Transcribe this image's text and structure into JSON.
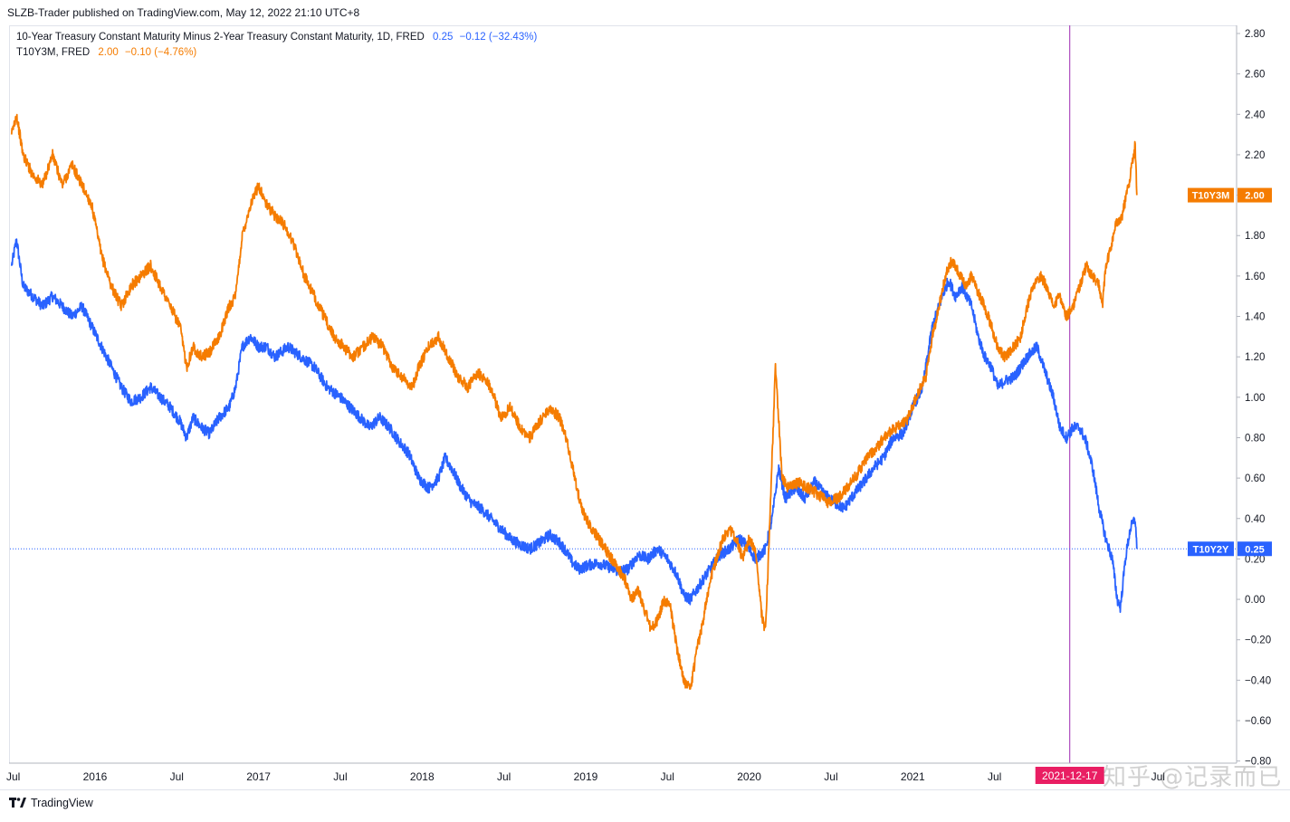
{
  "header": {
    "publisher": "SLZB-Trader published on TradingView.com, May 12, 2022 21:10 UTC+8"
  },
  "legend": [
    {
      "name": "10-Year Treasury Constant Maturity Minus 2-Year Treasury Constant Maturity, 1D, FRED",
      "value": "0.25",
      "change": "−0.12 (−32.43%)",
      "color": "#2962ff"
    },
    {
      "name": "T10Y3M, FRED",
      "value": "2.00",
      "change": "−0.10 (−4.76%)",
      "color": "#f57c00"
    }
  ],
  "footer": {
    "brand": "TradingView",
    "watermark": "知乎 @记录而已"
  },
  "chart_data": {
    "type": "line",
    "y_axis_side": "right",
    "ylim": [
      -0.8,
      2.8
    ],
    "y_ticks": [
      "2.80",
      "2.60",
      "2.40",
      "2.20",
      "2.00",
      "1.80",
      "1.60",
      "1.40",
      "1.20",
      "1.00",
      "0.80",
      "0.60",
      "0.40",
      "0.20",
      "0.00",
      "−0.20",
      "−0.40",
      "−0.60",
      "−0.80"
    ],
    "x_ticks": [
      {
        "label": "Jul",
        "t": 2015.5
      },
      {
        "label": "2016",
        "t": 2016.0
      },
      {
        "label": "Jul",
        "t": 2016.5
      },
      {
        "label": "2017",
        "t": 2017.0
      },
      {
        "label": "Jul",
        "t": 2017.5
      },
      {
        "label": "2018",
        "t": 2018.0
      },
      {
        "label": "Jul",
        "t": 2018.5
      },
      {
        "label": "2019",
        "t": 2019.0
      },
      {
        "label": "Jul",
        "t": 2019.5
      },
      {
        "label": "2020",
        "t": 2020.0
      },
      {
        "label": "Jul",
        "t": 2020.5
      },
      {
        "label": "2021",
        "t": 2021.0
      },
      {
        "label": "Jul",
        "t": 2021.5
      },
      {
        "label": "Jul",
        "t": 2022.5
      }
    ],
    "xlim": [
      2015.48,
      2022.98
    ],
    "marker": {
      "label": "2021-12-17",
      "t": 2021.96,
      "color": "#e91e63"
    },
    "price_line": {
      "value": 0.25,
      "color": "#2962ff"
    },
    "series": [
      {
        "name": "T10Y2Y",
        "color": "#2962ff",
        "last_value": "0.25",
        "points": [
          [
            2015.49,
            1.65
          ],
          [
            2015.52,
            1.78
          ],
          [
            2015.56,
            1.55
          ],
          [
            2015.62,
            1.5
          ],
          [
            2015.68,
            1.45
          ],
          [
            2015.74,
            1.5
          ],
          [
            2015.8,
            1.45
          ],
          [
            2015.86,
            1.4
          ],
          [
            2015.92,
            1.45
          ],
          [
            2015.98,
            1.35
          ],
          [
            2016.04,
            1.25
          ],
          [
            2016.1,
            1.15
          ],
          [
            2016.16,
            1.05
          ],
          [
            2016.22,
            0.98
          ],
          [
            2016.28,
            1.0
          ],
          [
            2016.34,
            1.05
          ],
          [
            2016.4,
            1.0
          ],
          [
            2016.46,
            0.95
          ],
          [
            2016.52,
            0.88
          ],
          [
            2016.56,
            0.8
          ],
          [
            2016.6,
            0.9
          ],
          [
            2016.65,
            0.85
          ],
          [
            2016.7,
            0.82
          ],
          [
            2016.76,
            0.9
          ],
          [
            2016.82,
            0.95
          ],
          [
            2016.86,
            1.05
          ],
          [
            2016.9,
            1.25
          ],
          [
            2016.95,
            1.3
          ],
          [
            2017.0,
            1.25
          ],
          [
            2017.05,
            1.25
          ],
          [
            2017.1,
            1.2
          ],
          [
            2017.18,
            1.25
          ],
          [
            2017.26,
            1.2
          ],
          [
            2017.34,
            1.15
          ],
          [
            2017.42,
            1.05
          ],
          [
            2017.5,
            1.0
          ],
          [
            2017.56,
            0.95
          ],
          [
            2017.62,
            0.9
          ],
          [
            2017.68,
            0.85
          ],
          [
            2017.74,
            0.9
          ],
          [
            2017.8,
            0.85
          ],
          [
            2017.86,
            0.78
          ],
          [
            2017.92,
            0.72
          ],
          [
            2017.98,
            0.6
          ],
          [
            2018.04,
            0.55
          ],
          [
            2018.1,
            0.6
          ],
          [
            2018.14,
            0.7
          ],
          [
            2018.18,
            0.65
          ],
          [
            2018.24,
            0.55
          ],
          [
            2018.3,
            0.48
          ],
          [
            2018.36,
            0.45
          ],
          [
            2018.42,
            0.4
          ],
          [
            2018.48,
            0.35
          ],
          [
            2018.54,
            0.3
          ],
          [
            2018.6,
            0.27
          ],
          [
            2018.66,
            0.25
          ],
          [
            2018.72,
            0.28
          ],
          [
            2018.78,
            0.32
          ],
          [
            2018.84,
            0.28
          ],
          [
            2018.88,
            0.24
          ],
          [
            2018.92,
            0.18
          ],
          [
            2018.96,
            0.15
          ],
          [
            2019.02,
            0.17
          ],
          [
            2019.08,
            0.18
          ],
          [
            2019.14,
            0.16
          ],
          [
            2019.2,
            0.14
          ],
          [
            2019.26,
            0.15
          ],
          [
            2019.32,
            0.22
          ],
          [
            2019.38,
            0.2
          ],
          [
            2019.44,
            0.25
          ],
          [
            2019.5,
            0.2
          ],
          [
            2019.56,
            0.12
          ],
          [
            2019.6,
            0.02
          ],
          [
            2019.64,
            0.0
          ],
          [
            2019.68,
            0.05
          ],
          [
            2019.72,
            0.1
          ],
          [
            2019.76,
            0.15
          ],
          [
            2019.82,
            0.22
          ],
          [
            2019.88,
            0.25
          ],
          [
            2019.94,
            0.3
          ],
          [
            2019.98,
            0.27
          ],
          [
            2020.04,
            0.2
          ],
          [
            2020.1,
            0.25
          ],
          [
            2020.14,
            0.4
          ],
          [
            2020.18,
            0.65
          ],
          [
            2020.22,
            0.5
          ],
          [
            2020.28,
            0.55
          ],
          [
            2020.34,
            0.5
          ],
          [
            2020.4,
            0.58
          ],
          [
            2020.46,
            0.52
          ],
          [
            2020.52,
            0.48
          ],
          [
            2020.58,
            0.45
          ],
          [
            2020.64,
            0.52
          ],
          [
            2020.7,
            0.58
          ],
          [
            2020.76,
            0.65
          ],
          [
            2020.82,
            0.7
          ],
          [
            2020.88,
            0.8
          ],
          [
            2020.94,
            0.82
          ],
          [
            2021.0,
            0.95
          ],
          [
            2021.06,
            1.05
          ],
          [
            2021.12,
            1.35
          ],
          [
            2021.18,
            1.5
          ],
          [
            2021.22,
            1.58
          ],
          [
            2021.26,
            1.5
          ],
          [
            2021.3,
            1.55
          ],
          [
            2021.36,
            1.45
          ],
          [
            2021.4,
            1.3
          ],
          [
            2021.44,
            1.2
          ],
          [
            2021.48,
            1.15
          ],
          [
            2021.52,
            1.05
          ],
          [
            2021.56,
            1.08
          ],
          [
            2021.62,
            1.1
          ],
          [
            2021.66,
            1.15
          ],
          [
            2021.7,
            1.2
          ],
          [
            2021.76,
            1.25
          ],
          [
            2021.82,
            1.1
          ],
          [
            2021.86,
            1.0
          ],
          [
            2021.9,
            0.85
          ],
          [
            2021.94,
            0.8
          ],
          [
            2021.98,
            0.85
          ],
          [
            2022.02,
            0.85
          ],
          [
            2022.06,
            0.78
          ],
          [
            2022.1,
            0.65
          ],
          [
            2022.14,
            0.45
          ],
          [
            2022.18,
            0.3
          ],
          [
            2022.22,
            0.2
          ],
          [
            2022.25,
            0.0
          ],
          [
            2022.27,
            -0.04
          ],
          [
            2022.3,
            0.2
          ],
          [
            2022.33,
            0.35
          ],
          [
            2022.36,
            0.4
          ],
          [
            2022.37,
            0.25
          ]
        ]
      },
      {
        "name": "T10Y3M",
        "color": "#f57c00",
        "last_value": "2.00",
        "points": [
          [
            2015.49,
            2.3
          ],
          [
            2015.52,
            2.4
          ],
          [
            2015.56,
            2.2
          ],
          [
            2015.62,
            2.1
          ],
          [
            2015.68,
            2.05
          ],
          [
            2015.74,
            2.2
          ],
          [
            2015.8,
            2.05
          ],
          [
            2015.86,
            2.15
          ],
          [
            2015.92,
            2.05
          ],
          [
            2015.98,
            1.95
          ],
          [
            2016.04,
            1.7
          ],
          [
            2016.1,
            1.55
          ],
          [
            2016.16,
            1.45
          ],
          [
            2016.22,
            1.55
          ],
          [
            2016.28,
            1.6
          ],
          [
            2016.34,
            1.65
          ],
          [
            2016.4,
            1.55
          ],
          [
            2016.46,
            1.45
          ],
          [
            2016.52,
            1.35
          ],
          [
            2016.56,
            1.15
          ],
          [
            2016.6,
            1.25
          ],
          [
            2016.65,
            1.2
          ],
          [
            2016.7,
            1.22
          ],
          [
            2016.76,
            1.3
          ],
          [
            2016.82,
            1.45
          ],
          [
            2016.86,
            1.5
          ],
          [
            2016.9,
            1.8
          ],
          [
            2016.95,
            1.95
          ],
          [
            2017.0,
            2.05
          ],
          [
            2017.05,
            1.95
          ],
          [
            2017.1,
            1.9
          ],
          [
            2017.16,
            1.85
          ],
          [
            2017.22,
            1.75
          ],
          [
            2017.28,
            1.6
          ],
          [
            2017.34,
            1.5
          ],
          [
            2017.4,
            1.4
          ],
          [
            2017.46,
            1.3
          ],
          [
            2017.52,
            1.25
          ],
          [
            2017.58,
            1.2
          ],
          [
            2017.64,
            1.25
          ],
          [
            2017.7,
            1.3
          ],
          [
            2017.76,
            1.25
          ],
          [
            2017.82,
            1.15
          ],
          [
            2017.88,
            1.1
          ],
          [
            2017.94,
            1.05
          ],
          [
            2017.98,
            1.15
          ],
          [
            2018.04,
            1.25
          ],
          [
            2018.1,
            1.3
          ],
          [
            2018.16,
            1.2
          ],
          [
            2018.22,
            1.1
          ],
          [
            2018.28,
            1.05
          ],
          [
            2018.34,
            1.12
          ],
          [
            2018.4,
            1.08
          ],
          [
            2018.44,
            1.0
          ],
          [
            2018.48,
            0.9
          ],
          [
            2018.54,
            0.95
          ],
          [
            2018.6,
            0.85
          ],
          [
            2018.66,
            0.8
          ],
          [
            2018.72,
            0.88
          ],
          [
            2018.78,
            0.95
          ],
          [
            2018.84,
            0.9
          ],
          [
            2018.88,
            0.8
          ],
          [
            2018.92,
            0.65
          ],
          [
            2018.96,
            0.5
          ],
          [
            2019.0,
            0.4
          ],
          [
            2019.04,
            0.35
          ],
          [
            2019.08,
            0.3
          ],
          [
            2019.12,
            0.25
          ],
          [
            2019.16,
            0.2
          ],
          [
            2019.2,
            0.15
          ],
          [
            2019.24,
            0.1
          ],
          [
            2019.28,
            0.0
          ],
          [
            2019.32,
            0.05
          ],
          [
            2019.36,
            -0.05
          ],
          [
            2019.4,
            -0.15
          ],
          [
            2019.44,
            -0.1
          ],
          [
            2019.48,
            0.0
          ],
          [
            2019.52,
            -0.05
          ],
          [
            2019.56,
            -0.25
          ],
          [
            2019.6,
            -0.4
          ],
          [
            2019.64,
            -0.45
          ],
          [
            2019.68,
            -0.25
          ],
          [
            2019.72,
            -0.1
          ],
          [
            2019.76,
            0.1
          ],
          [
            2019.8,
            0.2
          ],
          [
            2019.84,
            0.3
          ],
          [
            2019.88,
            0.35
          ],
          [
            2019.92,
            0.3
          ],
          [
            2019.96,
            0.2
          ],
          [
            2020.0,
            0.3
          ],
          [
            2020.04,
            0.25
          ],
          [
            2020.06,
            0.05
          ],
          [
            2020.08,
            -0.1
          ],
          [
            2020.1,
            -0.15
          ],
          [
            2020.12,
            0.25
          ],
          [
            2020.14,
            0.7
          ],
          [
            2020.16,
            1.15
          ],
          [
            2020.18,
            0.9
          ],
          [
            2020.2,
            0.6
          ],
          [
            2020.24,
            0.55
          ],
          [
            2020.3,
            0.58
          ],
          [
            2020.36,
            0.55
          ],
          [
            2020.42,
            0.52
          ],
          [
            2020.48,
            0.48
          ],
          [
            2020.54,
            0.5
          ],
          [
            2020.6,
            0.55
          ],
          [
            2020.66,
            0.62
          ],
          [
            2020.72,
            0.7
          ],
          [
            2020.78,
            0.75
          ],
          [
            2020.84,
            0.82
          ],
          [
            2020.9,
            0.85
          ],
          [
            2020.96,
            0.88
          ],
          [
            2021.02,
            1.0
          ],
          [
            2021.08,
            1.1
          ],
          [
            2021.12,
            1.3
          ],
          [
            2021.16,
            1.45
          ],
          [
            2021.2,
            1.6
          ],
          [
            2021.24,
            1.68
          ],
          [
            2021.28,
            1.62
          ],
          [
            2021.32,
            1.55
          ],
          [
            2021.36,
            1.6
          ],
          [
            2021.4,
            1.52
          ],
          [
            2021.44,
            1.45
          ],
          [
            2021.48,
            1.35
          ],
          [
            2021.52,
            1.25
          ],
          [
            2021.56,
            1.2
          ],
          [
            2021.62,
            1.25
          ],
          [
            2021.66,
            1.3
          ],
          [
            2021.7,
            1.45
          ],
          [
            2021.74,
            1.55
          ],
          [
            2021.78,
            1.6
          ],
          [
            2021.82,
            1.55
          ],
          [
            2021.86,
            1.45
          ],
          [
            2021.9,
            1.5
          ],
          [
            2021.94,
            1.4
          ],
          [
            2021.98,
            1.45
          ],
          [
            2022.02,
            1.55
          ],
          [
            2022.06,
            1.65
          ],
          [
            2022.1,
            1.6
          ],
          [
            2022.14,
            1.55
          ],
          [
            2022.16,
            1.45
          ],
          [
            2022.18,
            1.65
          ],
          [
            2022.2,
            1.7
          ],
          [
            2022.24,
            1.85
          ],
          [
            2022.28,
            1.9
          ],
          [
            2022.32,
            2.05
          ],
          [
            2022.34,
            2.15
          ],
          [
            2022.36,
            2.25
          ],
          [
            2022.37,
            2.0
          ]
        ]
      }
    ]
  }
}
